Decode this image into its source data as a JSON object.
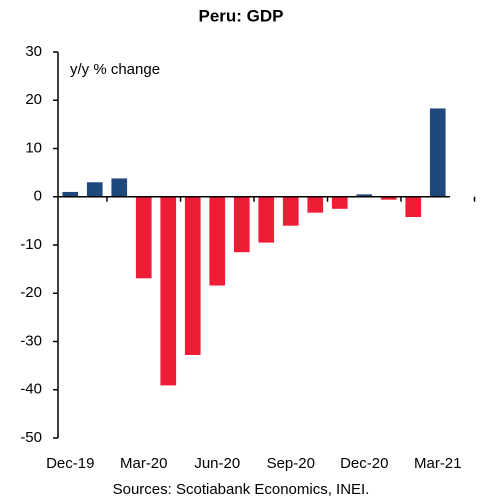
{
  "chart_data": {
    "type": "bar",
    "title": "Peru: GDP",
    "y_label": "y/y % change",
    "source": "Sources: Scotiabank Economics, INEI.",
    "categories": [
      "Dec-19",
      null,
      null,
      "Mar-20",
      null,
      null,
      "Jun-20",
      null,
      null,
      "Sep-20",
      null,
      null,
      "Dec-20",
      null,
      null,
      "Mar-21"
    ],
    "values": [
      1.0,
      3.0,
      3.8,
      -16.9,
      -39.1,
      -32.8,
      -18.4,
      -11.5,
      -9.5,
      -6.0,
      -3.3,
      -2.5,
      0.5,
      -0.6,
      -4.2,
      18.3
    ],
    "positive_color": "#1f497d",
    "negative_color": "#ee1c35",
    "ylim": [
      -50,
      30
    ],
    "yticks": [
      -50,
      -40,
      -30,
      -20,
      -10,
      0,
      10,
      20,
      30
    ]
  }
}
